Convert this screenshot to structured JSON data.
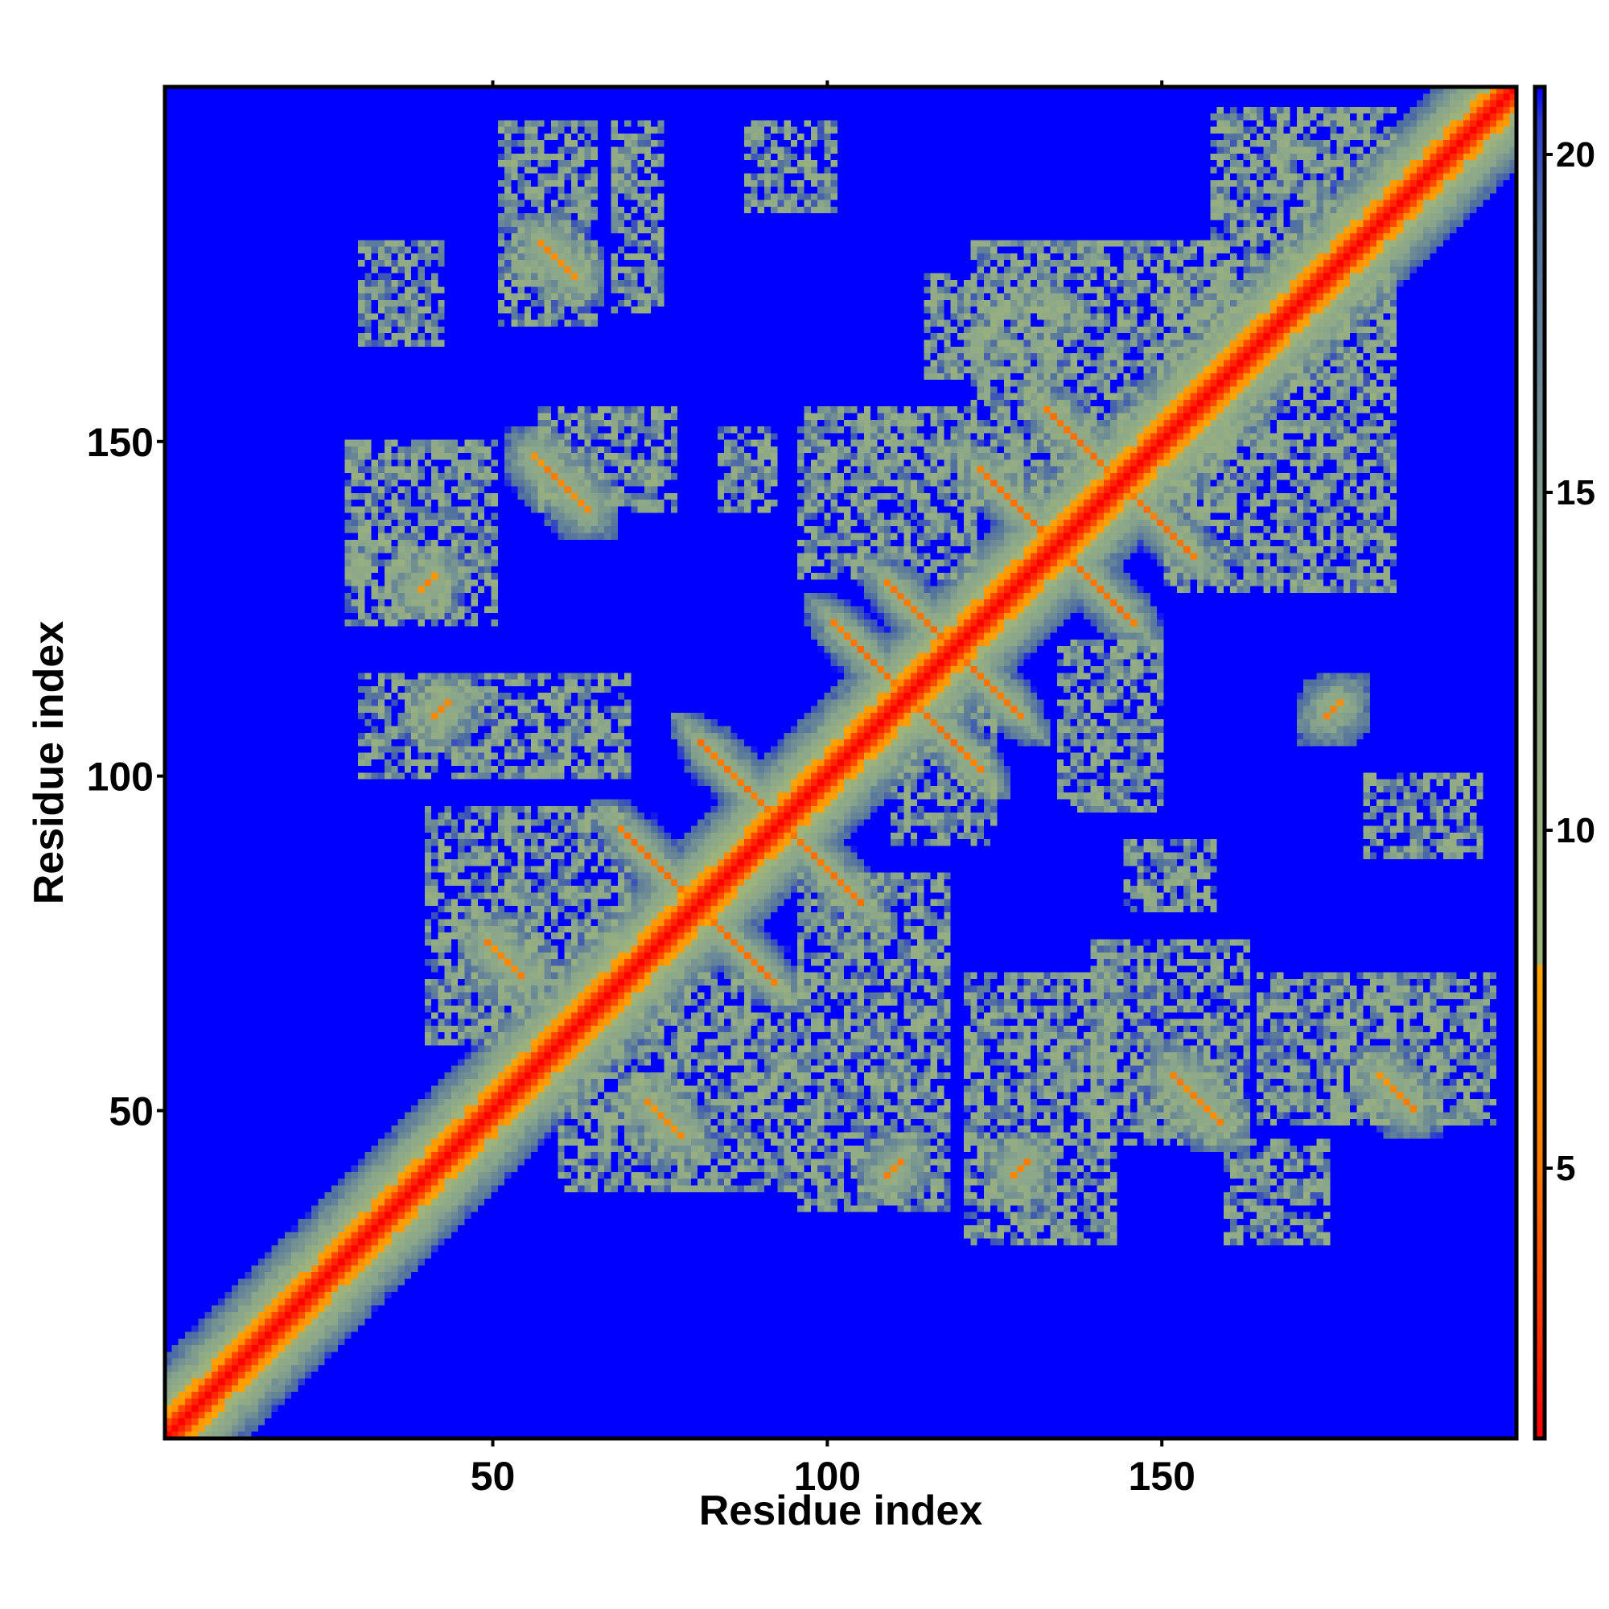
{
  "chart_data": {
    "type": "heatmap",
    "title": "",
    "xlabel": "Residue index",
    "ylabel": "Residue index",
    "xlim": [
      1,
      203
    ],
    "ylim": [
      1,
      203
    ],
    "x_ticks": [
      50,
      100,
      150
    ],
    "y_ticks": [
      50,
      100,
      150
    ],
    "colorbar": {
      "range": [
        1,
        21
      ],
      "ticks": [
        5,
        10,
        15,
        20
      ],
      "stops": [
        {
          "value": 1,
          "color": "#ff0000"
        },
        {
          "value": 5,
          "color": "#ff7a00"
        },
        {
          "value": 8,
          "color": "#ffa500"
        },
        {
          "value": 8.01,
          "color": "#9fb47a"
        },
        {
          "value": 14,
          "color": "#8aa68a"
        },
        {
          "value": 19,
          "color": "#4f6fa0"
        },
        {
          "value": 20.5,
          "color": "#2a3ad0"
        },
        {
          "value": 21,
          "color": "#0000ff"
        }
      ]
    },
    "background_value": 21,
    "diagonal_width": 2,
    "features": [
      {
        "kind": "diagonal",
        "from": 1,
        "to": 203
      },
      {
        "kind": "antiparallel_strand",
        "i": 82,
        "j": 104,
        "length": 10
      },
      {
        "kind": "antiparallel_strand",
        "i": 70,
        "j": 91,
        "length": 9
      },
      {
        "kind": "antiparallel_strand",
        "i": 110,
        "j": 128,
        "length": 8
      },
      {
        "kind": "antiparallel_strand",
        "i": 102,
        "j": 122,
        "length": 8
      },
      {
        "kind": "antiparallel_strand",
        "i": 134,
        "j": 154,
        "length": 9
      },
      {
        "kind": "antiparallel_strand",
        "i": 124,
        "j": 145,
        "length": 9
      },
      {
        "kind": "contact",
        "x": 56,
        "y": 148,
        "length": 9,
        "orientation": "anti"
      },
      {
        "kind": "contact",
        "x": 57,
        "y": 180,
        "length": 6,
        "orientation": "anti"
      },
      {
        "kind": "contact",
        "x": 49,
        "y": 75,
        "length": 6,
        "orientation": "anti"
      },
      {
        "kind": "contact",
        "x": 73,
        "y": 51,
        "length": 6,
        "orientation": "anti"
      },
      {
        "kind": "contact",
        "x": 152,
        "y": 55,
        "length": 8,
        "orientation": "anti"
      },
      {
        "kind": "contact",
        "x": 183,
        "y": 55,
        "length": 6,
        "orientation": "anti"
      },
      {
        "kind": "contact",
        "x": 39,
        "y": 128,
        "length": 3,
        "orientation": "par"
      },
      {
        "kind": "contact",
        "x": 41,
        "y": 109,
        "length": 3,
        "orientation": "par"
      },
      {
        "kind": "contact",
        "x": 109,
        "y": 40,
        "length": 3,
        "orientation": "par"
      },
      {
        "kind": "contact",
        "x": 128,
        "y": 40,
        "length": 3,
        "orientation": "par"
      },
      {
        "kind": "contact",
        "x": 175,
        "y": 109,
        "length": 3,
        "orientation": "par"
      }
    ],
    "regions": [
      {
        "x": [
          51,
          65
        ],
        "y": [
          168,
          198
        ]
      },
      {
        "x": [
          68,
          75
        ],
        "y": [
          170,
          198
        ]
      },
      {
        "x": [
          88,
          101
        ],
        "y": [
          185,
          198
        ]
      },
      {
        "x": [
          30,
          42
        ],
        "y": [
          165,
          180
        ]
      },
      {
        "x": [
          28,
          50
        ],
        "y": [
          123,
          150
        ]
      },
      {
        "x": [
          30,
          70
        ],
        "y": [
          100,
          115
        ]
      },
      {
        "x": [
          57,
          77
        ],
        "y": [
          140,
          155
        ]
      },
      {
        "x": [
          84,
          92
        ],
        "y": [
          140,
          152
        ]
      },
      {
        "x": [
          96,
          122
        ],
        "y": [
          130,
          155
        ]
      },
      {
        "x": [
          122,
          160
        ],
        "y": [
          140,
          180
        ]
      },
      {
        "x": [
          151,
          185
        ],
        "y": [
          128,
          175
        ]
      },
      {
        "x": [
          158,
          185
        ],
        "y": [
          165,
          200
        ]
      },
      {
        "x": [
          40,
          70
        ],
        "y": [
          60,
          95
        ]
      },
      {
        "x": [
          60,
          95
        ],
        "y": [
          38,
          70
        ]
      },
      {
        "x": [
          96,
          118
        ],
        "y": [
          35,
          85
        ]
      },
      {
        "x": [
          121,
          143
        ],
        "y": [
          30,
          70
        ]
      },
      {
        "x": [
          140,
          163
        ],
        "y": [
          45,
          75
        ]
      },
      {
        "x": [
          165,
          200
        ],
        "y": [
          48,
          70
        ]
      },
      {
        "x": [
          181,
          198
        ],
        "y": [
          88,
          100
        ]
      },
      {
        "x": [
          160,
          175
        ],
        "y": [
          30,
          45
        ]
      },
      {
        "x": [
          145,
          158
        ],
        "y": [
          80,
          90
        ]
      },
      {
        "x": [
          110,
          125
        ],
        "y": [
          90,
          110
        ]
      },
      {
        "x": [
          135,
          150
        ],
        "y": [
          95,
          120
        ]
      },
      {
        "x": [
          115,
          135
        ],
        "y": [
          160,
          175
        ]
      }
    ]
  }
}
